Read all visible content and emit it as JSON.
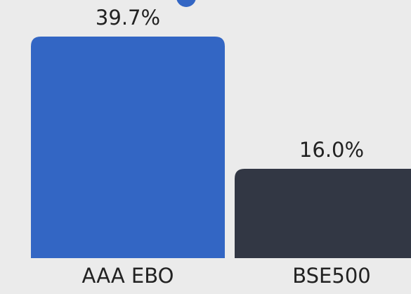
{
  "chart_data": {
    "type": "bar",
    "categories": [
      "AAA EBO",
      "BSE500"
    ],
    "values": [
      39.7,
      16.0
    ],
    "value_labels": [
      "39.7%",
      "16.0%"
    ],
    "colors": [
      "#3366c4",
      "#323744"
    ]
  }
}
